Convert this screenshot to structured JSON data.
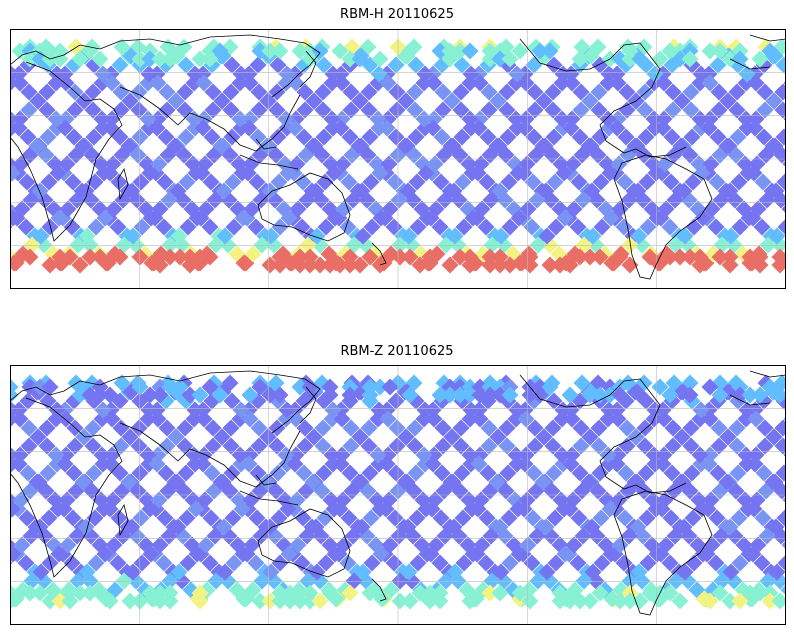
{
  "panels": [
    {
      "title": "RBM-H 20110625",
      "southern_intensity": 1.0,
      "northern_intensity": 0.55
    },
    {
      "title": "RBM-Z 20110625",
      "southern_intensity": 0.55,
      "northern_intensity": 0.25
    }
  ],
  "colors": {
    "low": "#6a6af0",
    "mid_low": "#55b8ff",
    "mid": "#7ff0d0",
    "mid_high": "#f2f27a",
    "high": "#e8635a",
    "coastline": "#000000",
    "grid": "#bbbbbb",
    "frame": "#000000"
  }
}
